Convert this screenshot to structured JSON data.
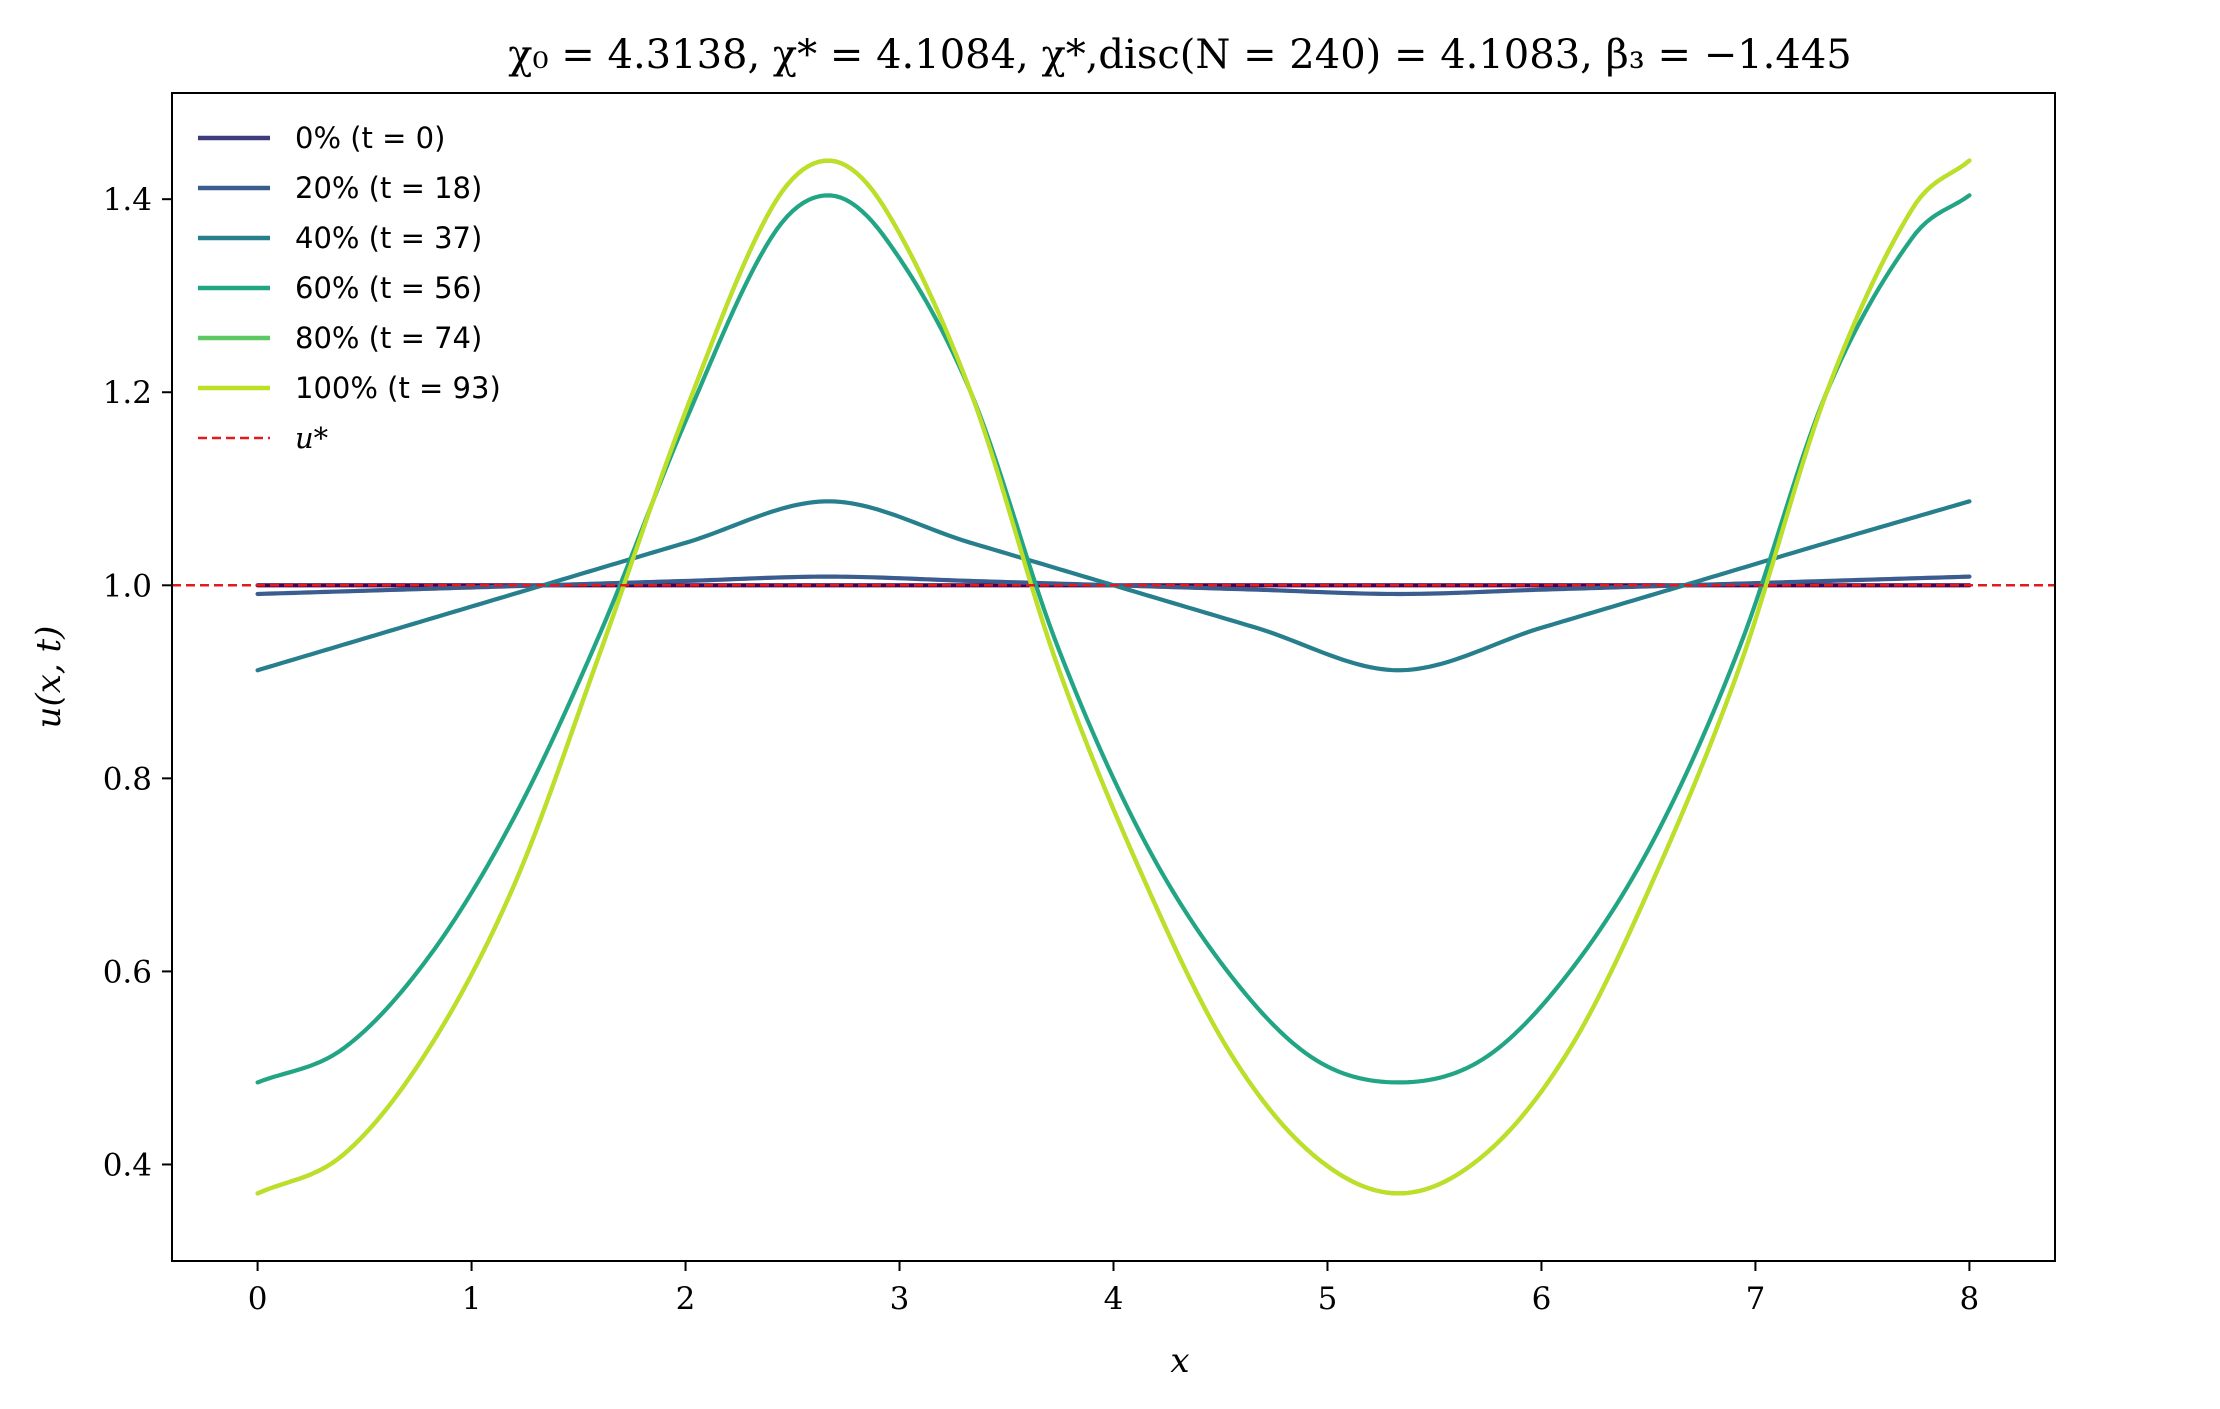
{
  "chart_data": {
    "type": "line",
    "title": "χ₀ = 4.3138,  χ* = 4.1084,  χ*,disc(N = 240) = 4.1083,  β₃ = −1.445",
    "xlabel": "x",
    "ylabel": "u(x, t)",
    "xlim": [
      -0.4,
      8.4
    ],
    "ylim": [
      0.3,
      1.51
    ],
    "xticks": [
      0,
      1,
      2,
      3,
      4,
      5,
      6,
      7,
      8
    ],
    "xtick_labels": [
      "0",
      "1",
      "2",
      "3",
      "4",
      "5",
      "6",
      "7",
      "8"
    ],
    "yticks": [
      0.4,
      0.6,
      0.8,
      1.0,
      1.2,
      1.4
    ],
    "ytick_labels": [
      "0.4",
      "0.6",
      "0.8",
      "1.0",
      "1.2",
      "1.4"
    ],
    "grid": false,
    "legend_position": "top-left",
    "x_range": [
      0,
      8
    ],
    "series": [
      {
        "name": "0% (t = 0)",
        "color": "#440154",
        "legend_color": "#3e3b7f",
        "samples": [
          [
            0,
            1.0
          ],
          [
            2.667,
            1.0
          ],
          [
            5.333,
            1.0
          ],
          [
            8,
            1.0
          ]
        ]
      },
      {
        "name": "20% (t = 18)",
        "color": "#3b5c8e",
        "samples": [
          [
            0,
            0.991
          ],
          [
            0.667,
            0.9955
          ],
          [
            1.333,
            1.0
          ],
          [
            2.0,
            1.0045
          ],
          [
            2.667,
            1.009
          ],
          [
            3.333,
            1.0045
          ],
          [
            4.0,
            1.0
          ],
          [
            4.667,
            0.9955
          ],
          [
            5.333,
            0.991
          ],
          [
            6.0,
            0.9955
          ],
          [
            6.667,
            1.0
          ],
          [
            7.333,
            1.0045
          ],
          [
            8.0,
            1.009
          ]
        ]
      },
      {
        "name": "40% (t = 37)",
        "color": "#277f8e",
        "samples": [
          [
            0,
            0.912
          ],
          [
            0.667,
            0.956
          ],
          [
            1.333,
            1.0
          ],
          [
            2.0,
            1.044
          ],
          [
            2.667,
            1.087
          ],
          [
            3.333,
            1.044
          ],
          [
            4.0,
            1.0
          ],
          [
            4.667,
            0.956
          ],
          [
            5.333,
            0.912
          ],
          [
            6.0,
            0.956
          ],
          [
            6.667,
            1.0
          ],
          [
            7.333,
            1.044
          ],
          [
            8.0,
            1.087
          ]
        ]
      },
      {
        "name": "60% (t = 56)",
        "color": "#22a584",
        "samples": [
          [
            0,
            0.485
          ],
          [
            0.4,
            0.52
          ],
          [
            0.8,
            0.615
          ],
          [
            1.2,
            0.76
          ],
          [
            1.6,
            0.95
          ],
          [
            2.0,
            1.17
          ],
          [
            2.4,
            1.36
          ],
          [
            2.667,
            1.404
          ],
          [
            2.933,
            1.36
          ],
          [
            3.333,
            1.2
          ],
          [
            3.733,
            0.94
          ],
          [
            4.133,
            0.74
          ],
          [
            4.533,
            0.6
          ],
          [
            4.933,
            0.51
          ],
          [
            5.333,
            0.485
          ],
          [
            5.733,
            0.51
          ],
          [
            6.133,
            0.6
          ],
          [
            6.533,
            0.74
          ],
          [
            6.933,
            0.94
          ],
          [
            7.333,
            1.2
          ],
          [
            7.733,
            1.36
          ],
          [
            8.0,
            1.404
          ]
        ]
      },
      {
        "name": "80% (t = 74)",
        "color": "#5ec962",
        "samples": [
          [
            0,
            0.37
          ],
          [
            0.4,
            0.41
          ],
          [
            0.8,
            0.52
          ],
          [
            1.2,
            0.69
          ],
          [
            1.6,
            0.93
          ],
          [
            2.0,
            1.18
          ],
          [
            2.4,
            1.39
          ],
          [
            2.667,
            1.44
          ],
          [
            2.933,
            1.39
          ],
          [
            3.333,
            1.2
          ],
          [
            3.733,
            0.92
          ],
          [
            4.133,
            0.7
          ],
          [
            4.533,
            0.52
          ],
          [
            4.933,
            0.41
          ],
          [
            5.333,
            0.37
          ],
          [
            5.733,
            0.41
          ],
          [
            6.133,
            0.52
          ],
          [
            6.533,
            0.7
          ],
          [
            6.933,
            0.92
          ],
          [
            7.333,
            1.2
          ],
          [
            7.733,
            1.39
          ],
          [
            8.0,
            1.44
          ]
        ]
      },
      {
        "name": "100% (t = 93)",
        "color": "#bddf26",
        "samples": [
          [
            0,
            0.37
          ],
          [
            0.4,
            0.41
          ],
          [
            0.8,
            0.52
          ],
          [
            1.2,
            0.69
          ],
          [
            1.6,
            0.93
          ],
          [
            2.0,
            1.18
          ],
          [
            2.4,
            1.39
          ],
          [
            2.667,
            1.44
          ],
          [
            2.933,
            1.39
          ],
          [
            3.333,
            1.2
          ],
          [
            3.733,
            0.92
          ],
          [
            4.133,
            0.7
          ],
          [
            4.533,
            0.52
          ],
          [
            4.933,
            0.41
          ],
          [
            5.333,
            0.37
          ],
          [
            5.733,
            0.41
          ],
          [
            6.133,
            0.52
          ],
          [
            6.533,
            0.7
          ],
          [
            6.933,
            0.92
          ],
          [
            7.333,
            1.2
          ],
          [
            7.733,
            1.39
          ],
          [
            8.0,
            1.44
          ]
        ]
      }
    ],
    "reference_line": {
      "name": "u*",
      "y": 1.0,
      "color": "#e41a1c",
      "style": "dashed"
    }
  }
}
